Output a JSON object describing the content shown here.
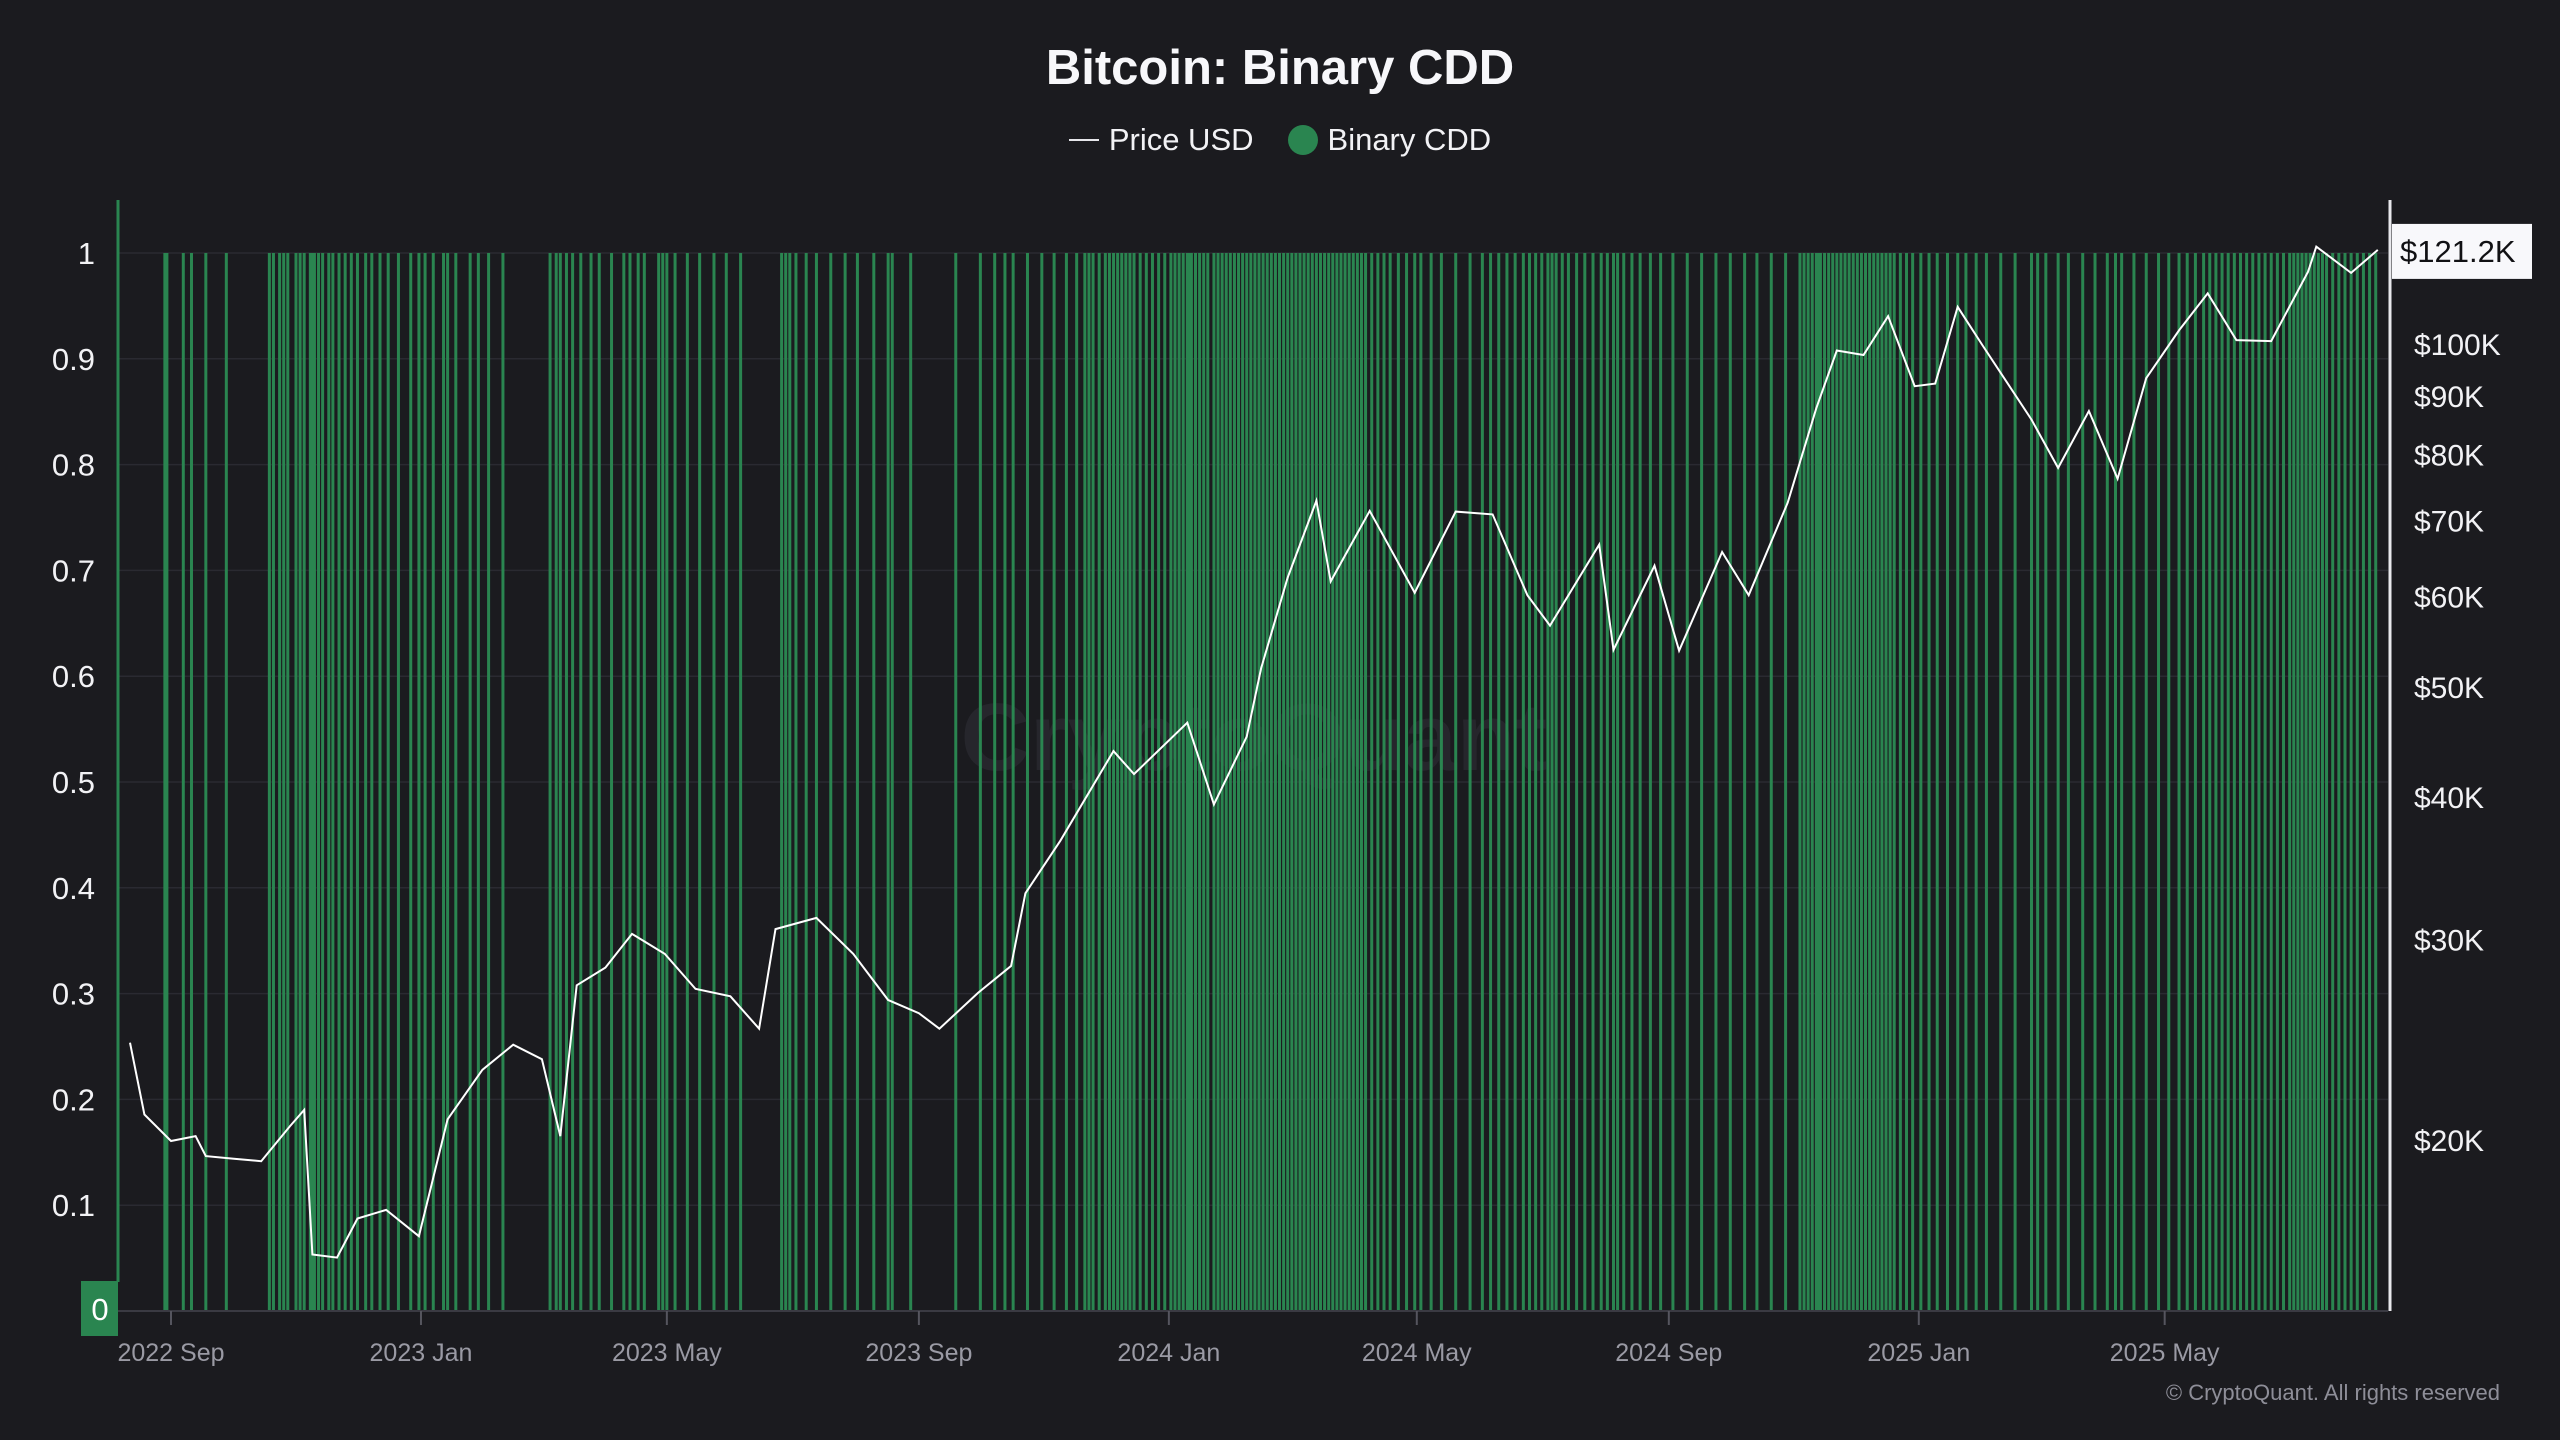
{
  "chart_data": {
    "title": "Bitcoin: Binary CDD",
    "type": "bar+line",
    "legend": {
      "placement": "top-center",
      "entries": [
        "Price USD",
        "Binary CDD"
      ]
    },
    "colors": {
      "background": "#1b1b1f",
      "binary_cdd": "#2a8550",
      "price": "#ffffff",
      "grid": "#2a2a31",
      "tick_label": "#9a9aa4"
    },
    "left_axis": {
      "range": [
        0,
        1
      ],
      "ticks": [
        "0",
        "0.1",
        "0.2",
        "0.3",
        "0.4",
        "0.5",
        "0.6",
        "0.7",
        "0.8",
        "0.9",
        "1"
      ],
      "highlight": "0"
    },
    "right_axis": {
      "scale": "log",
      "ticks": [
        {
          "label": "$100K",
          "value": 100000
        },
        {
          "label": "$90K",
          "value": 90000
        },
        {
          "label": "$80K",
          "value": 80000
        },
        {
          "label": "$70K",
          "value": 70000
        },
        {
          "label": "$60K",
          "value": 60000
        },
        {
          "label": "$50K",
          "value": 50000
        },
        {
          "label": "$40K",
          "value": 40000
        },
        {
          "label": "$30K",
          "value": 30000
        },
        {
          "label": "$20K",
          "value": 20000
        }
      ],
      "last_value_label": "$121.2K",
      "last_value": 121200
    },
    "x_axis": {
      "range": [
        "2022-08-12",
        "2025-08-13"
      ],
      "ticks": [
        {
          "label": "2022 Sep",
          "date": "2022-09-01"
        },
        {
          "label": "2023 Jan",
          "date": "2023-01-01"
        },
        {
          "label": "2023 May",
          "date": "2023-05-01"
        },
        {
          "label": "2023 Sep",
          "date": "2023-09-01"
        },
        {
          "label": "2024 Jan",
          "date": "2024-01-01"
        },
        {
          "label": "2024 May",
          "date": "2024-05-01"
        },
        {
          "label": "2024 Sep",
          "date": "2024-09-01"
        },
        {
          "label": "2025 Jan",
          "date": "2025-01-01"
        },
        {
          "label": "2025 May",
          "date": "2025-05-01"
        }
      ]
    },
    "grid": true,
    "series": [
      {
        "name": "Price USD",
        "type": "line",
        "points": [
          [
            "2022-08-12",
            24400
          ],
          [
            "2022-08-19",
            21100
          ],
          [
            "2022-09-01",
            20000
          ],
          [
            "2022-09-13",
            20200
          ],
          [
            "2022-09-18",
            19400
          ],
          [
            "2022-10-01",
            19300
          ],
          [
            "2022-10-15",
            19200
          ],
          [
            "2022-10-29",
            20600
          ],
          [
            "2022-11-05",
            21300
          ],
          [
            "2022-11-09",
            15900
          ],
          [
            "2022-11-21",
            15800
          ],
          [
            "2022-12-01",
            17100
          ],
          [
            "2022-12-15",
            17400
          ],
          [
            "2022-12-31",
            16500
          ],
          [
            "2023-01-14",
            20900
          ],
          [
            "2023-01-31",
            23100
          ],
          [
            "2023-02-15",
            24300
          ],
          [
            "2023-03-01",
            23600
          ],
          [
            "2023-03-10",
            20200
          ],
          [
            "2023-03-18",
            27400
          ],
          [
            "2023-04-01",
            28400
          ],
          [
            "2023-04-14",
            30400
          ],
          [
            "2023-04-30",
            29200
          ],
          [
            "2023-05-15",
            27200
          ],
          [
            "2023-06-01",
            26800
          ],
          [
            "2023-06-15",
            25100
          ],
          [
            "2023-06-23",
            30700
          ],
          [
            "2023-07-13",
            31400
          ],
          [
            "2023-07-31",
            29200
          ],
          [
            "2023-08-17",
            26600
          ],
          [
            "2023-09-01",
            25900
          ],
          [
            "2023-09-11",
            25100
          ],
          [
            "2023-09-30",
            27000
          ],
          [
            "2023-10-16",
            28500
          ],
          [
            "2023-10-23",
            33000
          ],
          [
            "2023-11-09",
            36700
          ],
          [
            "2023-12-05",
            44000
          ],
          [
            "2023-12-15",
            42000
          ],
          [
            "2024-01-10",
            46600
          ],
          [
            "2024-01-23",
            39500
          ],
          [
            "2024-02-08",
            45300
          ],
          [
            "2024-02-15",
            52000
          ],
          [
            "2024-02-28",
            62500
          ],
          [
            "2024-03-13",
            73000
          ],
          [
            "2024-03-20",
            62000
          ],
          [
            "2024-04-08",
            71500
          ],
          [
            "2024-04-30",
            60600
          ],
          [
            "2024-05-20",
            71400
          ],
          [
            "2024-06-07",
            71000
          ],
          [
            "2024-06-24",
            60300
          ],
          [
            "2024-07-05",
            56700
          ],
          [
            "2024-07-29",
            66800
          ],
          [
            "2024-08-05",
            54000
          ],
          [
            "2024-08-25",
            64000
          ],
          [
            "2024-09-06",
            53900
          ],
          [
            "2024-09-27",
            65800
          ],
          [
            "2024-10-10",
            60300
          ],
          [
            "2024-10-29",
            72700
          ],
          [
            "2024-11-12",
            88000
          ],
          [
            "2024-11-22",
            98900
          ],
          [
            "2024-12-05",
            98000
          ],
          [
            "2024-12-17",
            106000
          ],
          [
            "2024-12-30",
            92000
          ],
          [
            "2025-01-09",
            92500
          ],
          [
            "2025-01-20",
            108000
          ],
          [
            "2025-02-01",
            100000
          ],
          [
            "2025-02-25",
            86000
          ],
          [
            "2025-03-10",
            78000
          ],
          [
            "2025-03-25",
            87500
          ],
          [
            "2025-04-08",
            76300
          ],
          [
            "2025-04-22",
            93500
          ],
          [
            "2025-05-08",
            103000
          ],
          [
            "2025-05-22",
            111000
          ],
          [
            "2025-06-05",
            101000
          ],
          [
            "2025-06-22",
            100800
          ],
          [
            "2025-07-10",
            116000
          ],
          [
            "2025-07-14",
            122000
          ],
          [
            "2025-07-31",
            115700
          ],
          [
            "2025-08-13",
            121200
          ]
        ]
      },
      {
        "name": "Binary CDD",
        "type": "bar",
        "value": 1,
        "dates": [
          "2022-08-29",
          "2022-08-30",
          "2022-09-07",
          "2022-09-11",
          "2022-09-18",
          "2022-09-28",
          "2022-10-19",
          "2022-10-21",
          "2022-10-24",
          "2022-10-26",
          "2022-10-28",
          "2022-11-01",
          "2022-11-03",
          "2022-11-05",
          "2022-11-08",
          "2022-11-09",
          "2022-11-10",
          "2022-11-12",
          "2022-11-14",
          "2022-11-17",
          "2022-11-19",
          "2022-11-22",
          "2022-11-25",
          "2022-11-28",
          "2022-12-01",
          "2022-12-05",
          "2022-12-08",
          "2022-12-12",
          "2022-12-16",
          "2022-12-21",
          "2022-12-27",
          "2022-12-31",
          "2023-01-03",
          "2023-01-07",
          "2023-01-12",
          "2023-01-14",
          "2023-01-18",
          "2023-01-25",
          "2023-01-29",
          "2023-02-03",
          "2023-02-10",
          "2023-03-05",
          "2023-03-08",
          "2023-03-10",
          "2023-03-13",
          "2023-03-16",
          "2023-03-20",
          "2023-03-25",
          "2023-03-29",
          "2023-04-04",
          "2023-04-10",
          "2023-04-13",
          "2023-04-17",
          "2023-04-20",
          "2023-04-27",
          "2023-04-29",
          "2023-05-01",
          "2023-05-05",
          "2023-05-11",
          "2023-05-17",
          "2023-05-24",
          "2023-05-30",
          "2023-06-06",
          "2023-06-26",
          "2023-06-28",
          "2023-06-30",
          "2023-07-03",
          "2023-07-08",
          "2023-07-13",
          "2023-07-20",
          "2023-07-27",
          "2023-08-02",
          "2023-08-10",
          "2023-08-17",
          "2023-08-19",
          "2023-08-28",
          "2023-09-19",
          "2023-10-01",
          "2023-10-08",
          "2023-10-13",
          "2023-10-17",
          "2023-10-24",
          "2023-10-31",
          "2023-11-06",
          "2023-11-12",
          "2023-11-17",
          "2023-11-21",
          "2023-11-23",
          "2023-11-25",
          "2023-11-28",
          "2023-12-01",
          "2023-12-03",
          "2023-12-05",
          "2023-12-07",
          "2023-12-09",
          "2023-12-11",
          "2023-12-13",
          "2023-12-15",
          "2023-12-18",
          "2023-12-21",
          "2023-12-24",
          "2023-12-27",
          "2023-12-30",
          "2024-01-02",
          "2024-01-04",
          "2024-01-06",
          "2024-01-08",
          "2024-01-10",
          "2024-01-11",
          "2024-01-12",
          "2024-01-14",
          "2024-01-16",
          "2024-01-18",
          "2024-01-20",
          "2024-01-23",
          "2024-01-25",
          "2024-01-27",
          "2024-01-29",
          "2024-01-31",
          "2024-02-02",
          "2024-02-04",
          "2024-02-06",
          "2024-02-08",
          "2024-02-10",
          "2024-02-12",
          "2024-02-14",
          "2024-02-16",
          "2024-02-18",
          "2024-02-20",
          "2024-02-22",
          "2024-02-24",
          "2024-02-26",
          "2024-02-28",
          "2024-03-01",
          "2024-03-03",
          "2024-03-05",
          "2024-03-07",
          "2024-03-09",
          "2024-03-11",
          "2024-03-13",
          "2024-03-15",
          "2024-03-17",
          "2024-03-19",
          "2024-03-21",
          "2024-03-23",
          "2024-03-25",
          "2024-03-27",
          "2024-03-29",
          "2024-03-31",
          "2024-04-02",
          "2024-04-04",
          "2024-04-06",
          "2024-04-09",
          "2024-04-12",
          "2024-04-15",
          "2024-04-18",
          "2024-04-22",
          "2024-04-26",
          "2024-04-30",
          "2024-05-03",
          "2024-05-08",
          "2024-05-13",
          "2024-05-20",
          "2024-05-27",
          "2024-06-02",
          "2024-06-06",
          "2024-06-10",
          "2024-06-14",
          "2024-06-18",
          "2024-06-22",
          "2024-06-25",
          "2024-06-28",
          "2024-07-01",
          "2024-07-04",
          "2024-07-06",
          "2024-07-08",
          "2024-07-11",
          "2024-07-14",
          "2024-07-18",
          "2024-07-22",
          "2024-07-26",
          "2024-07-30",
          "2024-08-02",
          "2024-08-05",
          "2024-08-07",
          "2024-08-10",
          "2024-08-14",
          "2024-08-18",
          "2024-08-23",
          "2024-08-28",
          "2024-09-03",
          "2024-09-10",
          "2024-09-17",
          "2024-09-24",
          "2024-10-01",
          "2024-10-08",
          "2024-10-14",
          "2024-10-21",
          "2024-10-28",
          "2024-11-04",
          "2024-11-06",
          "2024-11-08",
          "2024-11-10",
          "2024-11-12",
          "2024-11-13",
          "2024-11-14",
          "2024-11-16",
          "2024-11-18",
          "2024-11-20",
          "2024-11-22",
          "2024-11-24",
          "2024-11-26",
          "2024-11-28",
          "2024-11-30",
          "2024-12-02",
          "2024-12-04",
          "2024-12-06",
          "2024-12-08",
          "2024-12-10",
          "2024-12-12",
          "2024-12-14",
          "2024-12-16",
          "2024-12-18",
          "2024-12-20",
          "2024-12-23",
          "2024-12-26",
          "2024-12-29",
          "2025-01-02",
          "2025-01-06",
          "2025-01-10",
          "2025-01-15",
          "2025-01-20",
          "2025-01-24",
          "2025-01-29",
          "2025-02-03",
          "2025-02-10",
          "2025-02-17",
          "2025-02-25",
          "2025-02-28",
          "2025-03-04",
          "2025-03-10",
          "2025-03-15",
          "2025-03-22",
          "2025-03-28",
          "2025-04-03",
          "2025-04-07",
          "2025-04-10",
          "2025-04-16",
          "2025-04-22",
          "2025-04-28",
          "2025-05-03",
          "2025-05-08",
          "2025-05-12",
          "2025-05-16",
          "2025-05-20",
          "2025-05-23",
          "2025-05-26",
          "2025-05-29",
          "2025-06-01",
          "2025-06-04",
          "2025-06-07",
          "2025-06-10",
          "2025-06-13",
          "2025-06-16",
          "2025-06-19",
          "2025-06-22",
          "2025-06-25",
          "2025-06-28",
          "2025-07-01",
          "2025-07-03",
          "2025-07-05",
          "2025-07-07",
          "2025-07-09",
          "2025-07-11",
          "2025-07-13",
          "2025-07-15",
          "2025-07-17",
          "2025-07-19",
          "2025-07-22",
          "2025-07-25",
          "2025-07-28",
          "2025-07-31",
          "2025-08-03",
          "2025-08-06",
          "2025-08-09",
          "2025-08-12"
        ]
      }
    ]
  },
  "watermark": "CryptoQuant",
  "copyright": "© CryptoQuant. All rights reserved"
}
